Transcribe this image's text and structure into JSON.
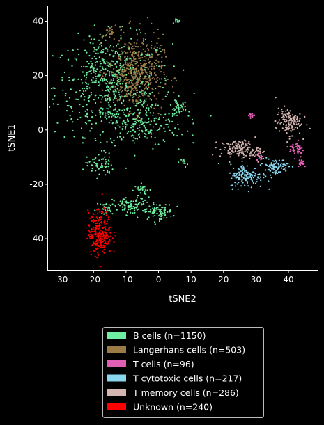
{
  "chart_data": {
    "type": "scatter",
    "xlabel": "tSNE2",
    "ylabel": "tSNE1",
    "xlim": [
      -34,
      49
    ],
    "ylim": [
      -51.5,
      45.5
    ],
    "xticks": [
      -30,
      -20,
      -10,
      0,
      10,
      20,
      30,
      40
    ],
    "yticks": [
      -40,
      -20,
      0,
      20,
      40
    ],
    "grid": false,
    "legend_position": "bottom-center, outside plot",
    "background": "#000000",
    "series": [
      {
        "name": "B cells (n=1150)",
        "color": "#6eeea0",
        "clusters": [
          {
            "cx": -14,
            "cy": 16,
            "sx": 9,
            "sy": 9,
            "n": 520
          },
          {
            "cx": -6,
            "cy": 2,
            "sx": 7,
            "sy": 4,
            "n": 200
          },
          {
            "cx": -18,
            "cy": 24,
            "sx": 4,
            "sy": 6,
            "n": 80
          },
          {
            "cx": -18,
            "cy": -13,
            "sx": 2,
            "sy": 2.2,
            "n": 60
          },
          {
            "cx": -8,
            "cy": -28,
            "sx": 3,
            "sy": 1.6,
            "n": 90
          },
          {
            "cx": 0,
            "cy": -30,
            "sx": 2.2,
            "sy": 1.5,
            "n": 80
          },
          {
            "cx": -16,
            "cy": -29,
            "sx": 1.6,
            "sy": 1.2,
            "n": 30
          },
          {
            "cx": 6,
            "cy": 40,
            "sx": 0.5,
            "sy": 0.4,
            "n": 12
          },
          {
            "cx": 8,
            "cy": -12,
            "sx": 0.5,
            "sy": 0.8,
            "n": 12
          },
          {
            "cx": 6,
            "cy": 8,
            "sx": 1.3,
            "sy": 1.2,
            "n": 40
          },
          {
            "cx": -5,
            "cy": -22,
            "sx": 1.2,
            "sy": 1.0,
            "n": 26
          }
        ]
      },
      {
        "name": "Langerhans cells (n=503)",
        "color": "#9b7b45",
        "clusters": [
          {
            "cx": -7,
            "cy": 21,
            "sx": 4.2,
            "sy": 7,
            "n": 480
          },
          {
            "cx": -15,
            "cy": 36,
            "sx": 0.6,
            "sy": 1.0,
            "n": 23
          }
        ]
      },
      {
        "name": "T cells (n=96)",
        "color": "#e05fb4",
        "clusters": [
          {
            "cx": 28.5,
            "cy": 5.5,
            "sx": 0.5,
            "sy": 0.5,
            "n": 18
          },
          {
            "cx": 42.5,
            "cy": -7,
            "sx": 1.1,
            "sy": 1.5,
            "n": 45
          },
          {
            "cx": 44,
            "cy": -12,
            "sx": 0.8,
            "sy": 0.8,
            "n": 20
          },
          {
            "cx": 31,
            "cy": -10,
            "sx": 0.6,
            "sy": 0.8,
            "n": 13
          }
        ]
      },
      {
        "name": "T cytotoxic cells (n=217)",
        "color": "#8ad6ee",
        "clusters": [
          {
            "cx": 27,
            "cy": -17,
            "sx": 2.5,
            "sy": 2.2,
            "n": 130
          },
          {
            "cx": 36,
            "cy": -13.5,
            "sx": 2.0,
            "sy": 1.5,
            "n": 87
          }
        ]
      },
      {
        "name": "T memory cells (n=286)",
        "color": "#d4b5b1",
        "clusters": [
          {
            "cx": 25,
            "cy": -7,
            "sx": 3.0,
            "sy": 1.6,
            "n": 140
          },
          {
            "cx": 40,
            "cy": 3,
            "sx": 2.0,
            "sy": 2.5,
            "n": 130
          },
          {
            "cx": 31,
            "cy": -9,
            "sx": 1.0,
            "sy": 1.2,
            "n": 16
          }
        ]
      },
      {
        "name": "Unknown (n=240)",
        "color": "#ff0000",
        "clusters": [
          {
            "cx": -18,
            "cy": -38,
            "sx": 1.8,
            "sy": 4,
            "n": 240
          }
        ]
      }
    ]
  }
}
